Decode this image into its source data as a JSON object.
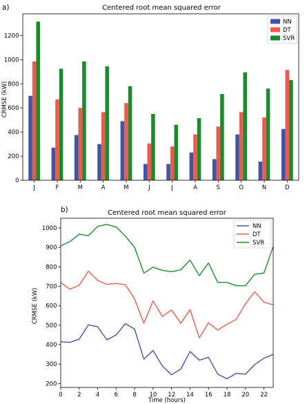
{
  "colors": {
    "NN": "#4055a8",
    "DT": "#ec5b4c",
    "SVR": "#1e8a2e"
  },
  "chart_data": [
    {
      "panel_label": "a)",
      "type": "bar",
      "title": "Centered root mean squared error",
      "ylabel": "CRMSE (kW)",
      "xlabel": "",
      "categories": [
        "J",
        "F",
        "M",
        "A",
        "M",
        "J",
        "J",
        "A",
        "S",
        "O",
        "N",
        "D"
      ],
      "ylim": [
        0,
        1380
      ],
      "yticks": [
        0,
        200,
        400,
        600,
        800,
        1000,
        1200
      ],
      "legend": "top-right",
      "series": [
        {
          "name": "NN",
          "values": [
            700,
            270,
            375,
            300,
            490,
            135,
            135,
            230,
            175,
            380,
            155,
            425
          ]
        },
        {
          "name": "DT",
          "values": [
            985,
            670,
            600,
            565,
            640,
            305,
            280,
            380,
            445,
            565,
            520,
            915
          ]
        },
        {
          "name": "SVR",
          "values": [
            1315,
            925,
            985,
            945,
            780,
            550,
            460,
            515,
            715,
            895,
            760,
            830
          ]
        }
      ]
    },
    {
      "panel_label": "b)",
      "type": "line",
      "title": "Centered root mean squared error",
      "ylabel": "CRMSE (kW)",
      "xlabel": "Time (hours)",
      "x": [
        0,
        1,
        2,
        3,
        4,
        5,
        6,
        7,
        8,
        9,
        10,
        11,
        12,
        13,
        14,
        15,
        16,
        17,
        18,
        19,
        20,
        21,
        22,
        23
      ],
      "xlim": [
        0,
        23
      ],
      "ylim": [
        180,
        1050
      ],
      "xticks": [
        0,
        2,
        4,
        6,
        8,
        10,
        12,
        14,
        16,
        18,
        20,
        22
      ],
      "yticks": [
        200,
        300,
        400,
        500,
        600,
        700,
        800,
        900,
        1000
      ],
      "legend": "top-right",
      "series": [
        {
          "name": "NN",
          "values": [
            415,
            412,
            428,
            502,
            492,
            425,
            450,
            508,
            480,
            325,
            370,
            290,
            245,
            275,
            365,
            320,
            335,
            248,
            225,
            252,
            248,
            298,
            330,
            350
          ]
        },
        {
          "name": "DT",
          "values": [
            720,
            685,
            705,
            778,
            730,
            710,
            715,
            708,
            635,
            510,
            625,
            545,
            578,
            510,
            580,
            435,
            512,
            475,
            505,
            530,
            610,
            672,
            618,
            605
          ]
        },
        {
          "name": "SVR",
          "values": [
            908,
            930,
            968,
            960,
            1008,
            1018,
            1005,
            958,
            900,
            768,
            798,
            782,
            775,
            785,
            835,
            755,
            820,
            720,
            720,
            703,
            703,
            762,
            768,
            905
          ]
        }
      ]
    }
  ]
}
